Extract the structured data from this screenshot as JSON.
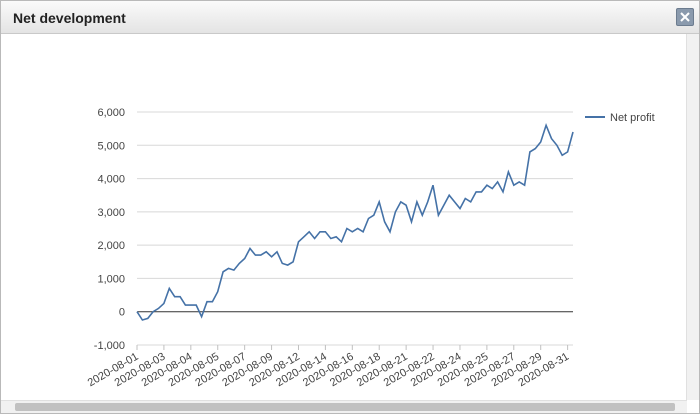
{
  "window": {
    "title": "Net development"
  },
  "chart_data": {
    "type": "line",
    "categories": [
      "2020-08-01",
      null,
      null,
      null,
      null,
      "2020-08-03",
      null,
      null,
      null,
      null,
      "2020-08-04",
      null,
      null,
      null,
      null,
      "2020-08-05",
      null,
      null,
      null,
      null,
      "2020-08-07",
      null,
      null,
      null,
      null,
      "2020-08-09",
      null,
      null,
      null,
      null,
      "2020-08-12",
      null,
      null,
      null,
      null,
      "2020-08-14",
      null,
      null,
      null,
      null,
      "2020-08-16",
      null,
      null,
      null,
      null,
      "2020-08-18",
      null,
      null,
      null,
      null,
      "2020-08-21",
      null,
      null,
      null,
      null,
      "2020-08-22",
      null,
      null,
      null,
      null,
      "2020-08-24",
      null,
      null,
      null,
      null,
      "2020-08-25",
      null,
      null,
      null,
      null,
      "2020-08-27",
      null,
      null,
      null,
      null,
      "2020-08-29",
      null,
      null,
      null,
      null,
      "2020-08-31",
      null
    ],
    "series": [
      {
        "name": "Net profit",
        "color": "#4572a7",
        "values": [
          0,
          -250,
          -200,
          0,
          100,
          250,
          700,
          450,
          450,
          200,
          200,
          200,
          -150,
          300,
          300,
          600,
          1200,
          1300,
          1250,
          1450,
          1600,
          1900,
          1700,
          1700,
          1800,
          1650,
          1800,
          1450,
          1400,
          1500,
          2100,
          2250,
          2400,
          2200,
          2400,
          2400,
          2200,
          2250,
          2100,
          2500,
          2400,
          2500,
          2400,
          2800,
          2900,
          3300,
          2700,
          2400,
          3000,
          3300,
          3200,
          2700,
          3300,
          2900,
          3300,
          3800,
          2900,
          3200,
          3500,
          3300,
          3100,
          3400,
          3300,
          3600,
          3600,
          3800,
          3700,
          3900,
          3600,
          4200,
          3800,
          3900,
          3800,
          4800,
          4900,
          5100,
          5600,
          5200,
          5000,
          4700,
          4800,
          5400
        ]
      }
    ],
    "ylim": [
      -1000,
      6000
    ],
    "yticks": [
      {
        "value": -1000,
        "label": "-1,000"
      },
      0,
      {
        "value": 1000,
        "label": "1,000"
      },
      {
        "value": 2000,
        "label": "2,000"
      },
      {
        "value": 3000,
        "label": "3,000"
      },
      {
        "value": 4000,
        "label": "4,000"
      },
      {
        "value": 5000,
        "label": "5,000"
      },
      {
        "value": 6000,
        "label": "6,000"
      }
    ],
    "grid": true,
    "legend": "right"
  }
}
